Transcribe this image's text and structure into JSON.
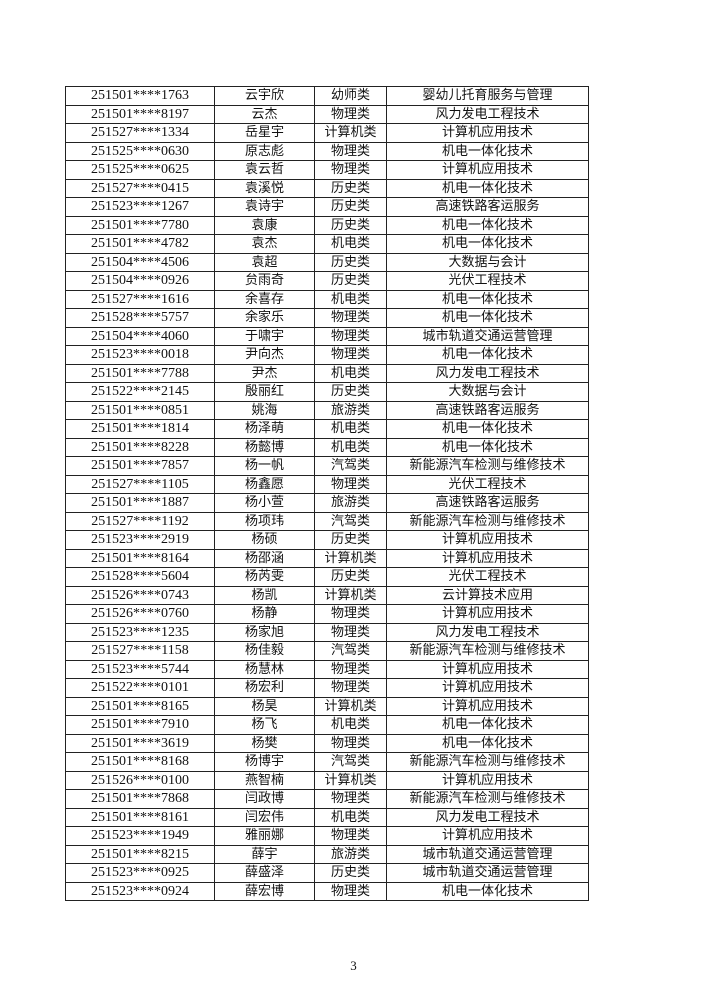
{
  "table": {
    "rows": [
      [
        "251501****1763",
        "云宇欣",
        "幼师类",
        "婴幼儿托育服务与管理"
      ],
      [
        "251501****8197",
        "云杰",
        "物理类",
        "风力发电工程技术"
      ],
      [
        "251527****1334",
        "岳星宇",
        "计算机类",
        "计算机应用技术"
      ],
      [
        "251525****0630",
        "原志彪",
        "物理类",
        "机电一体化技术"
      ],
      [
        "251525****0625",
        "袁云哲",
        "物理类",
        "计算机应用技术"
      ],
      [
        "251527****0415",
        "袁溪悦",
        "历史类",
        "机电一体化技术"
      ],
      [
        "251523****1267",
        "袁诗宇",
        "历史类",
        "高速铁路客运服务"
      ],
      [
        "251501****7780",
        "袁康",
        "历史类",
        "机电一体化技术"
      ],
      [
        "251501****4782",
        "袁杰",
        "机电类",
        "机电一体化技术"
      ],
      [
        "251504****4506",
        "袁超",
        "历史类",
        "大数据与会计"
      ],
      [
        "251504****0926",
        "贠雨奇",
        "历史类",
        "光伏工程技术"
      ],
      [
        "251527****1616",
        "余喜存",
        "机电类",
        "机电一体化技术"
      ],
      [
        "251528****5757",
        "余家乐",
        "物理类",
        "机电一体化技术"
      ],
      [
        "251504****4060",
        "于啸宇",
        "物理类",
        "城市轨道交通运营管理"
      ],
      [
        "251523****0018",
        "尹向杰",
        "物理类",
        "机电一体化技术"
      ],
      [
        "251501****7788",
        "尹杰",
        "机电类",
        "风力发电工程技术"
      ],
      [
        "251522****2145",
        "殷丽红",
        "历史类",
        "大数据与会计"
      ],
      [
        "251501****0851",
        "姚海",
        "旅游类",
        "高速铁路客运服务"
      ],
      [
        "251501****1814",
        "杨泽萌",
        "机电类",
        "机电一体化技术"
      ],
      [
        "251501****8228",
        "杨懿博",
        "机电类",
        "机电一体化技术"
      ],
      [
        "251501****7857",
        "杨一帆",
        "汽驾类",
        "新能源汽车检测与维修技术"
      ],
      [
        "251527****1105",
        "杨鑫愿",
        "物理类",
        "光伏工程技术"
      ],
      [
        "251501****1887",
        "杨小萱",
        "旅游类",
        "高速铁路客运服务"
      ],
      [
        "251527****1192",
        "杨项玮",
        "汽驾类",
        "新能源汽车检测与维修技术"
      ],
      [
        "251523****2919",
        "杨硕",
        "历史类",
        "计算机应用技术"
      ],
      [
        "251501****8164",
        "杨邵涵",
        "计算机类",
        "计算机应用技术"
      ],
      [
        "251528****5604",
        "杨芮雯",
        "历史类",
        "光伏工程技术"
      ],
      [
        "251526****0743",
        "杨凯",
        "计算机类",
        "云计算技术应用"
      ],
      [
        "251526****0760",
        "杨静",
        "物理类",
        "计算机应用技术"
      ],
      [
        "251523****1235",
        "杨家旭",
        "物理类",
        "风力发电工程技术"
      ],
      [
        "251527****1158",
        "杨佳毅",
        "汽驾类",
        "新能源汽车检测与维修技术"
      ],
      [
        "251523****5744",
        "杨慧林",
        "物理类",
        "计算机应用技术"
      ],
      [
        "251522****0101",
        "杨宏利",
        "物理类",
        "计算机应用技术"
      ],
      [
        "251501****8165",
        "杨昊",
        "计算机类",
        "计算机应用技术"
      ],
      [
        "251501****7910",
        "杨飞",
        "机电类",
        "机电一体化技术"
      ],
      [
        "251501****3619",
        "杨樊",
        "物理类",
        "机电一体化技术"
      ],
      [
        "251501****8168",
        "杨博宇",
        "汽驾类",
        "新能源汽车检测与维修技术"
      ],
      [
        "251526****0100",
        "燕智楠",
        "计算机类",
        "计算机应用技术"
      ],
      [
        "251501****7868",
        "闫政博",
        "物理类",
        "新能源汽车检测与维修技术"
      ],
      [
        "251501****8161",
        "闫宏伟",
        "机电类",
        "风力发电工程技术"
      ],
      [
        "251523****1949",
        "雅丽娜",
        "物理类",
        "计算机应用技术"
      ],
      [
        "251501****8215",
        "薛宇",
        "旅游类",
        "城市轨道交通运营管理"
      ],
      [
        "251523****0925",
        "薛盛泽",
        "历史类",
        "城市轨道交通运营管理"
      ],
      [
        "251523****0924",
        "薛宏博",
        "物理类",
        "机电一体化技术"
      ]
    ]
  },
  "footer": {
    "page_number": "3"
  }
}
